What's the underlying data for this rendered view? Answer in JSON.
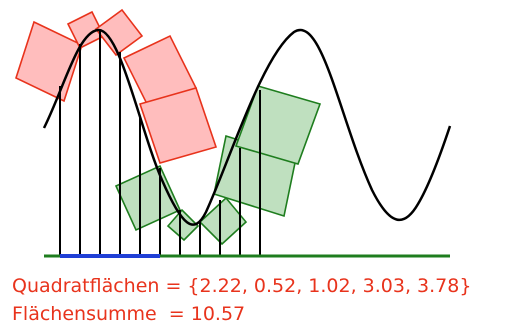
{
  "captions": {
    "areas": "Quadratflächen = {2.22, 0.52, 1.02, 3.03, 3.78}",
    "sum": "Flächensumme  = 10.57"
  },
  "colors": {
    "text": "#e8331c",
    "curve": "#000000",
    "baseline_green": "#1e7d1e",
    "baseline_blue": "#1f3fd6",
    "square_red_fill": "#ffbdbd",
    "square_red_stroke": "#e8331c",
    "square_green_fill": "#bfe0bf",
    "square_green_stroke": "#1e7d1e",
    "stick": "#000000"
  },
  "icons": {
    "curve": "sine-wave",
    "squares": "tilted-squares"
  }
}
